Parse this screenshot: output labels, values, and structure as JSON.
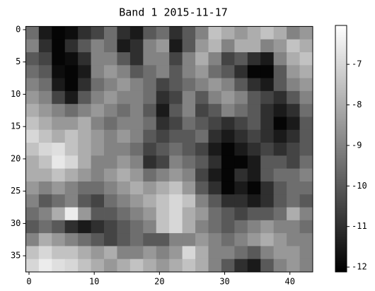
{
  "chart_data": {
    "type": "heatmap",
    "title": "Band  1 2015-11-17",
    "colormap": "gray",
    "xlim": [
      -0.5,
      43.5
    ],
    "ylim": [
      -0.5,
      37.5
    ],
    "y_inverted": true,
    "xticks": [
      0,
      10,
      20,
      30,
      40
    ],
    "yticks": [
      0,
      5,
      10,
      15,
      20,
      25,
      30,
      35
    ],
    "clim": [
      -12.12,
      -6.04
    ],
    "cticks": [
      -12,
      -11,
      -10,
      -9,
      -8,
      -7
    ],
    "z": [
      [
        -9.5,
        -11.5,
        -12,
        -11.8,
        -11,
        -10.5,
        -9.5,
        -11,
        -11.5,
        -10,
        -9.5,
        -11,
        -10,
        -9,
        -7.5,
        -8,
        -8.5,
        -8,
        -7.5,
        -8,
        -9,
        -8.5
      ],
      [
        -9,
        -11,
        -12,
        -11,
        -10,
        -9,
        -9.5,
        -11.5,
        -11,
        -9,
        -8.5,
        -11.5,
        -10,
        -8.5,
        -7.8,
        -9,
        -8,
        -8,
        -9,
        -8.5,
        -7.5,
        -8
      ],
      [
        -10,
        -10.5,
        -12,
        -11.8,
        -11,
        -9,
        -9,
        -10,
        -11,
        -9,
        -9,
        -10.5,
        -9,
        -8,
        -9,
        -10.5,
        -10,
        -11,
        -11.5,
        -9,
        -8,
        -7.5
      ],
      [
        -9.5,
        -10,
        -11.8,
        -12,
        -11.5,
        -9,
        -8.5,
        -9,
        -10,
        -9.5,
        -9,
        -10,
        -9,
        -8.5,
        -9.5,
        -10,
        -11,
        -12,
        -12,
        -10,
        -8.5,
        -8
      ],
      [
        -9,
        -9.5,
        -11.5,
        -12,
        -11,
        -9.5,
        -9,
        -8.5,
        -9,
        -9.5,
        -10.5,
        -10,
        -9.5,
        -9,
        -8.5,
        -9,
        -10,
        -11,
        -11.5,
        -10,
        -9,
        -8.5
      ],
      [
        -8.5,
        -9,
        -10.5,
        -11.5,
        -10,
        -9,
        -8.5,
        -9,
        -9,
        -9.5,
        -11,
        -10.5,
        -9,
        -10,
        -9,
        -8.5,
        -9,
        -10,
        -10.5,
        -11,
        -10,
        -9
      ],
      [
        -8,
        -8.5,
        -9,
        -9.5,
        -9,
        -8.5,
        -9,
        -9.5,
        -9,
        -10,
        -11.5,
        -10,
        -9,
        -10.5,
        -10,
        -9,
        -9.5,
        -10,
        -11,
        -11.5,
        -11,
        -9.5
      ],
      [
        -7.5,
        -8,
        -8.5,
        -8.5,
        -8,
        -9,
        -9.5,
        -9,
        -9,
        -9.5,
        -11,
        -10.5,
        -9.5,
        -10,
        -10.5,
        -11,
        -10.5,
        -10,
        -11,
        -12,
        -11.5,
        -10
      ],
      [
        -7,
        -7.5,
        -8,
        -7.5,
        -8,
        -8.5,
        -9,
        -8.5,
        -9,
        -10,
        -10.5,
        -10,
        -10,
        -9.5,
        -11,
        -11.5,
        -11,
        -10.5,
        -11,
        -11.5,
        -11,
        -10
      ],
      [
        -7.5,
        -7,
        -6.8,
        -7.5,
        -8,
        -8.5,
        -9,
        -9,
        -9.5,
        -10.5,
        -10,
        -9.5,
        -10,
        -10.5,
        -11.5,
        -12,
        -11.5,
        -11,
        -10.5,
        -11,
        -10.5,
        -10
      ],
      [
        -8,
        -7.5,
        -6.6,
        -7,
        -8,
        -9,
        -9,
        -8.5,
        -9,
        -11,
        -10.5,
        -9,
        -9.5,
        -10,
        -11,
        -12,
        -12,
        -11.5,
        -10,
        -10,
        -10.5,
        -9.5
      ],
      [
        -8,
        -8,
        -7.5,
        -8,
        -8.5,
        -9,
        -8.5,
        -8,
        -8.5,
        -9.5,
        -9,
        -8.5,
        -9,
        -10.5,
        -11.5,
        -12,
        -11,
        -11.5,
        -10,
        -9.5,
        -9.5,
        -9
      ],
      [
        -8.5,
        -9,
        -8.5,
        -9,
        -9.5,
        -9.5,
        -9,
        -8.5,
        -8,
        -8.5,
        -8,
        -7.5,
        -8.5,
        -10,
        -11,
        -12,
        -11.5,
        -12,
        -11,
        -10,
        -9.5,
        -9.5
      ],
      [
        -9,
        -10,
        -9.5,
        -9,
        -10,
        -10.5,
        -9.5,
        -9,
        -8.5,
        -8,
        -7.5,
        -7,
        -7.5,
        -9,
        -10,
        -11,
        -11,
        -11.5,
        -11,
        -10,
        -9.5,
        -10
      ],
      [
        -9.5,
        -9,
        -8,
        -6.5,
        -8.5,
        -10,
        -10,
        -9.5,
        -9,
        -8.5,
        -7.5,
        -7,
        -8,
        -8.5,
        -9.5,
        -10,
        -10.5,
        -10,
        -10,
        -9.5,
        -8,
        -9
      ],
      [
        -10,
        -9.5,
        -10,
        -11,
        -11.5,
        -11,
        -10.5,
        -10,
        -9.5,
        -9,
        -7.5,
        -7,
        -8,
        -9,
        -9.5,
        -10,
        -9.5,
        -9,
        -8.5,
        -9,
        -9,
        -9.5
      ],
      [
        -9,
        -8,
        -8.5,
        -9,
        -9.5,
        -10,
        -10.5,
        -10,
        -9.5,
        -10,
        -10,
        -9,
        -9,
        -8.5,
        -9,
        -9.5,
        -9,
        -8.5,
        -8,
        -8.5,
        -9,
        -9
      ],
      [
        -7.5,
        -7,
        -7.5,
        -7.5,
        -8,
        -8.5,
        -8,
        -9,
        -9,
        -8.5,
        -9,
        -8.5,
        -7,
        -8,
        -9,
        -9,
        -9.5,
        -10,
        -9,
        -8.5,
        -8.5,
        -9
      ],
      [
        -7,
        -6.5,
        -6.8,
        -7,
        -7.5,
        -8,
        -8.5,
        -8,
        -7.5,
        -8,
        -8.5,
        -8,
        -7.5,
        -8,
        -9,
        -10,
        -11,
        -11.5,
        -10,
        -9,
        -8.5,
        -9
      ]
    ]
  }
}
